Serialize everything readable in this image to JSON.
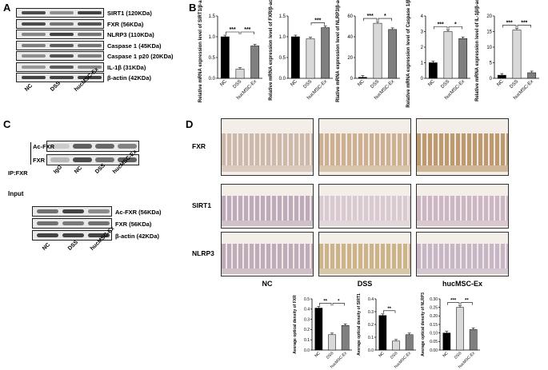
{
  "panels": {
    "a": "A",
    "b": "B",
    "c": "C",
    "d": "D"
  },
  "panelA": {
    "rows": [
      "SIRT1 (120KDa)",
      "FXR (56KDa)",
      "NLRP3 (110KDa)",
      "Caspase 1  (45KDa)",
      "Caspase 1 p20 (20KDa)",
      "IL-1β (31KDa)",
      "β-actin (42KDa)"
    ],
    "lanes": [
      "NC",
      "DSS",
      "hucMSC-Ex"
    ]
  },
  "panelC": {
    "ip_label": "IP:FXR",
    "ip_rows": [
      "Ac-FXR",
      "FXR"
    ],
    "ip_lanes": [
      "IgG",
      "NC",
      "DSS",
      "hucMSC-Ex"
    ],
    "input_label": "Input",
    "input_rows": [
      "Ac-FXR (56KDa)",
      "FXR (56KDa)",
      "β-actin (42KDa)"
    ],
    "input_lanes": [
      "NC",
      "DSS",
      "hucMSC-Ex"
    ]
  },
  "panelD": {
    "rows": [
      "FXR",
      "SIRT1",
      "NLRP3"
    ],
    "cols": [
      "NC",
      "DSS",
      "hucMSC-Ex"
    ]
  },
  "chart_data": [
    {
      "type": "bar",
      "panel": "B",
      "categories": [
        "NC",
        "DSS",
        "hucMSC-Ex"
      ],
      "values": [
        1.0,
        0.22,
        0.78
      ],
      "ylabel": "Relative mRNA expression level of SIRT1/β-actin",
      "ylim": [
        0,
        1.5
      ],
      "yticks": [
        "0.0",
        "0.5",
        "1.0",
        "1.5"
      ],
      "sig": [
        {
          "from": 0,
          "to": 1,
          "label": "***"
        },
        {
          "from": 1,
          "to": 2,
          "label": "***"
        }
      ]
    },
    {
      "type": "bar",
      "panel": "B",
      "categories": [
        "NC",
        "DSS",
        "hucMSC-Ex"
      ],
      "values": [
        1.0,
        0.95,
        1.22
      ],
      "ylabel": "Relative mRNA expression level of FXR/β-actin",
      "ylim": [
        0,
        1.5
      ],
      "yticks": [
        "0.0",
        "0.5",
        "1.0",
        "1.5"
      ],
      "sig": [
        {
          "from": 1,
          "to": 2,
          "label": "***"
        }
      ]
    },
    {
      "type": "bar",
      "panel": "B",
      "categories": [
        "NC",
        "DSS",
        "hucMSC-Ex"
      ],
      "values": [
        1.0,
        53,
        47
      ],
      "ylabel": "Rlative mRNA expression level of NLRP3/β-actin",
      "ylim": [
        0,
        60
      ],
      "yticks": [
        "0",
        "20",
        "40",
        "60"
      ],
      "sig": [
        {
          "from": 0,
          "to": 1,
          "label": "***"
        },
        {
          "from": 1,
          "to": 2,
          "label": "*"
        }
      ]
    },
    {
      "type": "bar",
      "panel": "B",
      "categories": [
        "NC",
        "DSS",
        "hucMSC-Ex"
      ],
      "values": [
        1.0,
        3.0,
        2.55
      ],
      "ylabel": "Relative mRNA expression level of Caspase 1/β-actin",
      "ylim": [
        0,
        4
      ],
      "yticks": [
        "0",
        "1",
        "2",
        "3",
        "4"
      ],
      "sig": [
        {
          "from": 0,
          "to": 1,
          "label": "***"
        },
        {
          "from": 1,
          "to": 2,
          "label": "*"
        }
      ]
    },
    {
      "type": "bar",
      "panel": "B",
      "categories": [
        "NC",
        "DSS",
        "hucMSC-Ex"
      ],
      "values": [
        1.0,
        15.5,
        1.8
      ],
      "ylabel": "Relative mRNA expression level of IL-1β/β-actin",
      "ylim": [
        0,
        20
      ],
      "yticks": [
        "0",
        "5",
        "10",
        "15",
        "20"
      ],
      "sig": [
        {
          "from": 0,
          "to": 1,
          "label": "***"
        },
        {
          "from": 1,
          "to": 2,
          "label": "***"
        }
      ]
    },
    {
      "type": "bar",
      "panel": "D",
      "categories": [
        "NC",
        "DSS",
        "hucMSC-Ex"
      ],
      "values": [
        0.41,
        0.15,
        0.24
      ],
      "ylabel": "Average optical density of FXR",
      "ylim": [
        0,
        0.5
      ],
      "yticks": [
        "0.0",
        "0.1",
        "0.2",
        "0.3",
        "0.4",
        "0.5"
      ],
      "sig": [
        {
          "from": 0,
          "to": 1,
          "label": "**"
        },
        {
          "from": 1,
          "to": 2,
          "label": "*"
        }
      ]
    },
    {
      "type": "bar",
      "panel": "D",
      "categories": [
        "NC",
        "DSS",
        "hucMSC-Ex"
      ],
      "values": [
        0.27,
        0.07,
        0.12
      ],
      "ylabel": "Average optical density of SIRT1",
      "ylim": [
        0,
        0.4
      ],
      "yticks": [
        "0.0",
        "0.1",
        "0.2",
        "0.3",
        "0.4"
      ],
      "sig": [
        {
          "from": 0,
          "to": 1,
          "label": "**"
        }
      ]
    },
    {
      "type": "bar",
      "panel": "D",
      "categories": [
        "NC",
        "DSS",
        "hucMSC-Ex"
      ],
      "values": [
        0.1,
        0.25,
        0.12
      ],
      "ylabel": "Average optical density of NLRP3",
      "ylim": [
        0,
        0.3
      ],
      "yticks": [
        "0.00",
        "0.05",
        "0.10",
        "0.15",
        "0.20",
        "0.25",
        "0.30"
      ],
      "sig": [
        {
          "from": 0,
          "to": 1,
          "label": "***"
        },
        {
          "from": 1,
          "to": 2,
          "label": "**"
        }
      ]
    }
  ],
  "colors": {
    "nc": "#000000",
    "dss": "#d9d9d9",
    "ex": "#7f7f7f",
    "band": "#2b2b2b",
    "ihc_bg": "#f3eee8",
    "tissue": "#b6a0a8"
  }
}
